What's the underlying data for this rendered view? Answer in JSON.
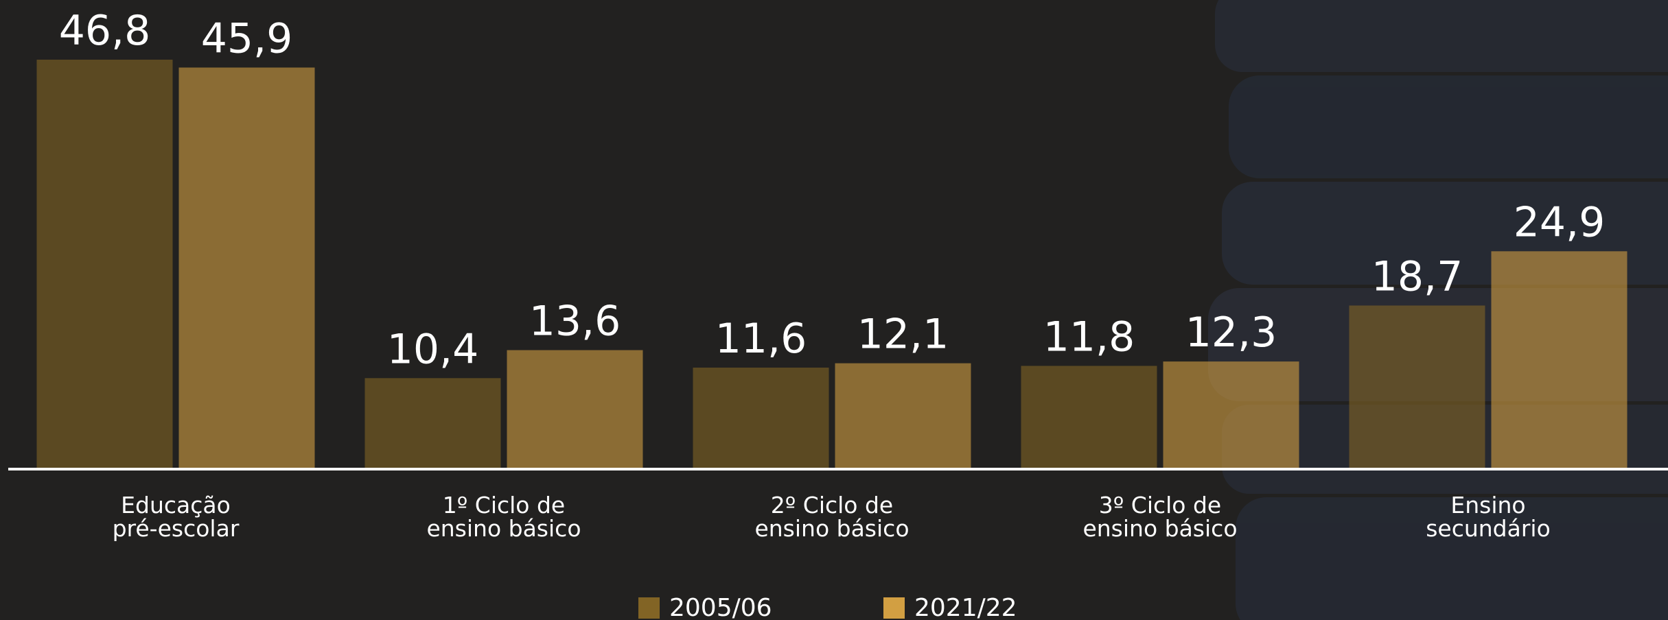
{
  "chart_data": {
    "type": "bar",
    "categories": [
      "Educação\npré-escolar",
      "1º Ciclo de\nensino básico",
      "2º Ciclo de\nensino básico",
      "3º Ciclo de\nensino básico",
      "Ensino\nsecundário"
    ],
    "series": [
      {
        "name": "2005/06",
        "color": "#826425",
        "values": [
          46.8,
          10.4,
          11.6,
          11.8,
          18.7
        ],
        "value_labels": [
          "46,8",
          "10,4",
          "11,6",
          "11,8",
          "18,7"
        ]
      },
      {
        "name": "2021/22",
        "color": "#d29f42",
        "values": [
          45.9,
          13.6,
          12.1,
          12.3,
          24.9
        ],
        "value_labels": [
          "45,9",
          "13,6",
          "12,1",
          "12,3",
          "24,9"
        ]
      }
    ]
  }
}
